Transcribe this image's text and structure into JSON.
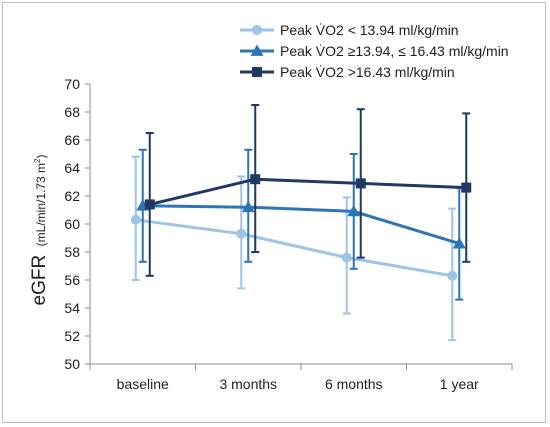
{
  "chart_data": {
    "type": "line",
    "categories": [
      "baseline",
      "3 months",
      "6 months",
      "1 year"
    ],
    "ylabel_main": "eGFR",
    "ylabel_unit": "(mL/min/1.73 m",
    "ylabel_sup": "2",
    "ylabel_close": ")",
    "ylim": [
      50,
      70
    ],
    "yticks": [
      50,
      52,
      54,
      56,
      58,
      60,
      62,
      64,
      66,
      68,
      70
    ],
    "grid": false,
    "legend_position": "top-right",
    "series": [
      {
        "name": "Peak V̇O2 < 13.94 ml/kg/min",
        "color": "#9dc3e6",
        "marker": "circle",
        "values": [
          60.3,
          59.3,
          57.6,
          56.3
        ],
        "err_low": [
          56.0,
          55.4,
          53.6,
          51.7
        ],
        "err_high": [
          64.8,
          63.4,
          61.9,
          61.1
        ]
      },
      {
        "name": "Peak V̇O2 ≥13.94, ≤ 16.43 ml/kg/min",
        "color": "#2e75b6",
        "marker": "triangle",
        "values": [
          61.3,
          61.2,
          60.9,
          58.6
        ],
        "err_low": [
          57.3,
          57.3,
          56.8,
          54.6
        ],
        "err_high": [
          65.3,
          65.3,
          65.0,
          62.6
        ]
      },
      {
        "name": "Peak V̇O2 >16.43 ml/kg/min",
        "color": "#1f3864",
        "marker": "square",
        "values": [
          61.4,
          63.2,
          62.9,
          62.6
        ],
        "err_low": [
          56.3,
          58.0,
          57.6,
          57.3
        ],
        "err_high": [
          66.5,
          68.5,
          68.2,
          67.9
        ]
      }
    ]
  }
}
